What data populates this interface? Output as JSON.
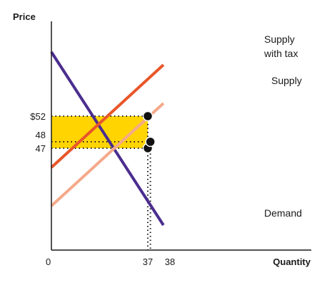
{
  "chart_data": {
    "type": "line",
    "title": "",
    "xlabel": "Quantity",
    "ylabel": "Price",
    "origin_label": "0",
    "x_ticks": [
      "37",
      "38"
    ],
    "y_ticks": [
      "$52",
      "48",
      "47"
    ],
    "xlim": [
      0,
      45
    ],
    "ylim": [
      25,
      65
    ],
    "grid": false,
    "series": [
      {
        "name": "Demand",
        "color": "#4b2d8f",
        "x": [
          0,
          43
        ],
        "y": [
          62,
          35
        ]
      },
      {
        "name": "Supply with tax",
        "color": "#e8562a",
        "x": [
          0,
          43
        ],
        "y": [
          44,
          60
        ]
      },
      {
        "name": "Supply",
        "color": "#f4a98a",
        "x": [
          0,
          43
        ],
        "y": [
          38,
          54
        ]
      }
    ],
    "tax_wedge": {
      "price_buyers": 52,
      "price_sellers": 47,
      "quantity": 37,
      "color": "#ffd400"
    },
    "points": [
      {
        "x": 37,
        "y": 52
      },
      {
        "x": 37,
        "y": 47
      },
      {
        "x": 38,
        "y": 48
      }
    ]
  }
}
